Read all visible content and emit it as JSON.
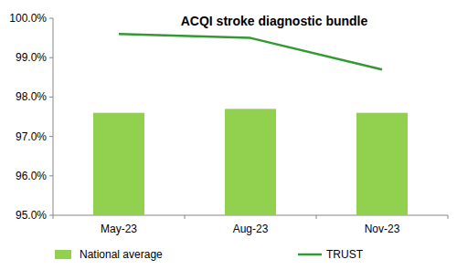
{
  "chart_data": {
    "type": "bar",
    "title": "ACQI stroke diagnostic bundle",
    "categories": [
      "May-23",
      "Aug-23",
      "Nov-23"
    ],
    "series": [
      {
        "name": "National average",
        "type": "bar",
        "color": "#92d050",
        "values": [
          97.6,
          97.7,
          97.6
        ]
      },
      {
        "name": "TRUST",
        "type": "line",
        "color": "#339933",
        "values": [
          99.6,
          99.5,
          98.7
        ]
      }
    ],
    "ylim": [
      95,
      100
    ],
    "yticks": [
      {
        "value": 95,
        "label": "95.0%"
      },
      {
        "value": 96,
        "label": "96.0%"
      },
      {
        "value": 97,
        "label": "97.0%"
      },
      {
        "value": 98,
        "label": "98.0%"
      },
      {
        "value": 99,
        "label": "99.0%"
      },
      {
        "value": 100,
        "label": "100.0%"
      }
    ],
    "grid": false,
    "legend": "bottom"
  }
}
